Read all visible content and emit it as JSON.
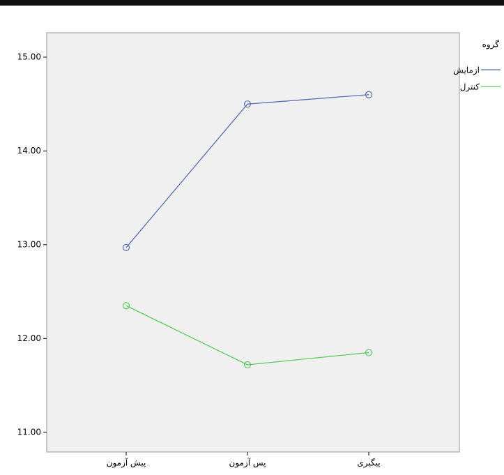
{
  "chart_data": {
    "type": "line",
    "legend_title": "گروه",
    "categories": [
      "پیش آزمون",
      "پس آزمون",
      "پیگیری"
    ],
    "series": [
      {
        "name": "ازمایش",
        "color": "#5b6db5",
        "values": [
          12.97,
          14.5,
          14.6
        ]
      },
      {
        "name": "کنترل",
        "color": "#5cc95c",
        "values": [
          12.35,
          11.72,
          11.85
        ]
      }
    ],
    "ylim": [
      10.79,
      15.26
    ],
    "yticks": [
      {
        "value": 11,
        "label": "11.00"
      },
      {
        "value": 12,
        "label": "12.00"
      },
      {
        "value": 13,
        "label": "13.00"
      },
      {
        "value": 14,
        "label": "14.00"
      },
      {
        "value": 15,
        "label": "15.00"
      }
    ],
    "legend": "top-right"
  }
}
